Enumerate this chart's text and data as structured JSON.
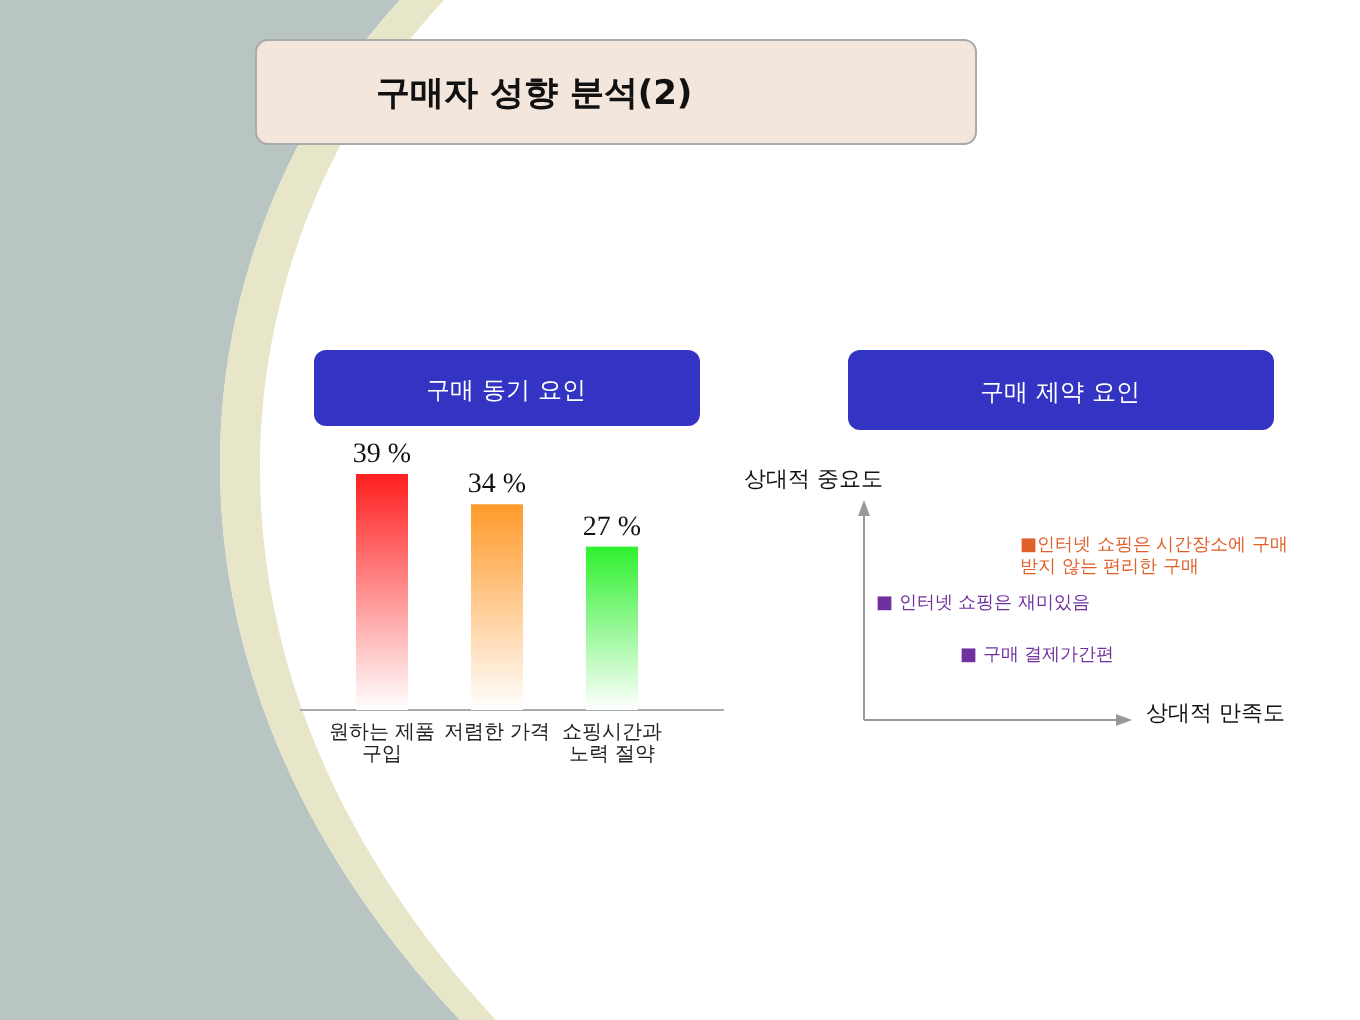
{
  "chart_data": [
    {
      "type": "bar",
      "title": "구매자 성향 분석(2)",
      "subtitle": "구매 동기 요인",
      "categories": [
        "원하는 제품\n구입",
        "저렴한 가격",
        "쇼핑시간과\n노력 절약"
      ],
      "values": [
        39,
        34,
        27
      ],
      "colors": [
        "#ff1f1f",
        "#ff9a2a",
        "#2ef02e"
      ],
      "value_labels": [
        "39 %",
        "34 %",
        "27 %"
      ]
    },
    {
      "type": "other",
      "title": "구매 제약 요인",
      "xlabel": "상대적 만족도",
      "ylabel": "상대적 중요도",
      "annotations": [
        "■인터넷 쇼핑은 시간장소에 구매\n받지 않는 편리한 구매",
        "■ 인터넷 쇼핑은 재미있음",
        "■ 구매 결제가간편"
      ]
    }
  ]
}
